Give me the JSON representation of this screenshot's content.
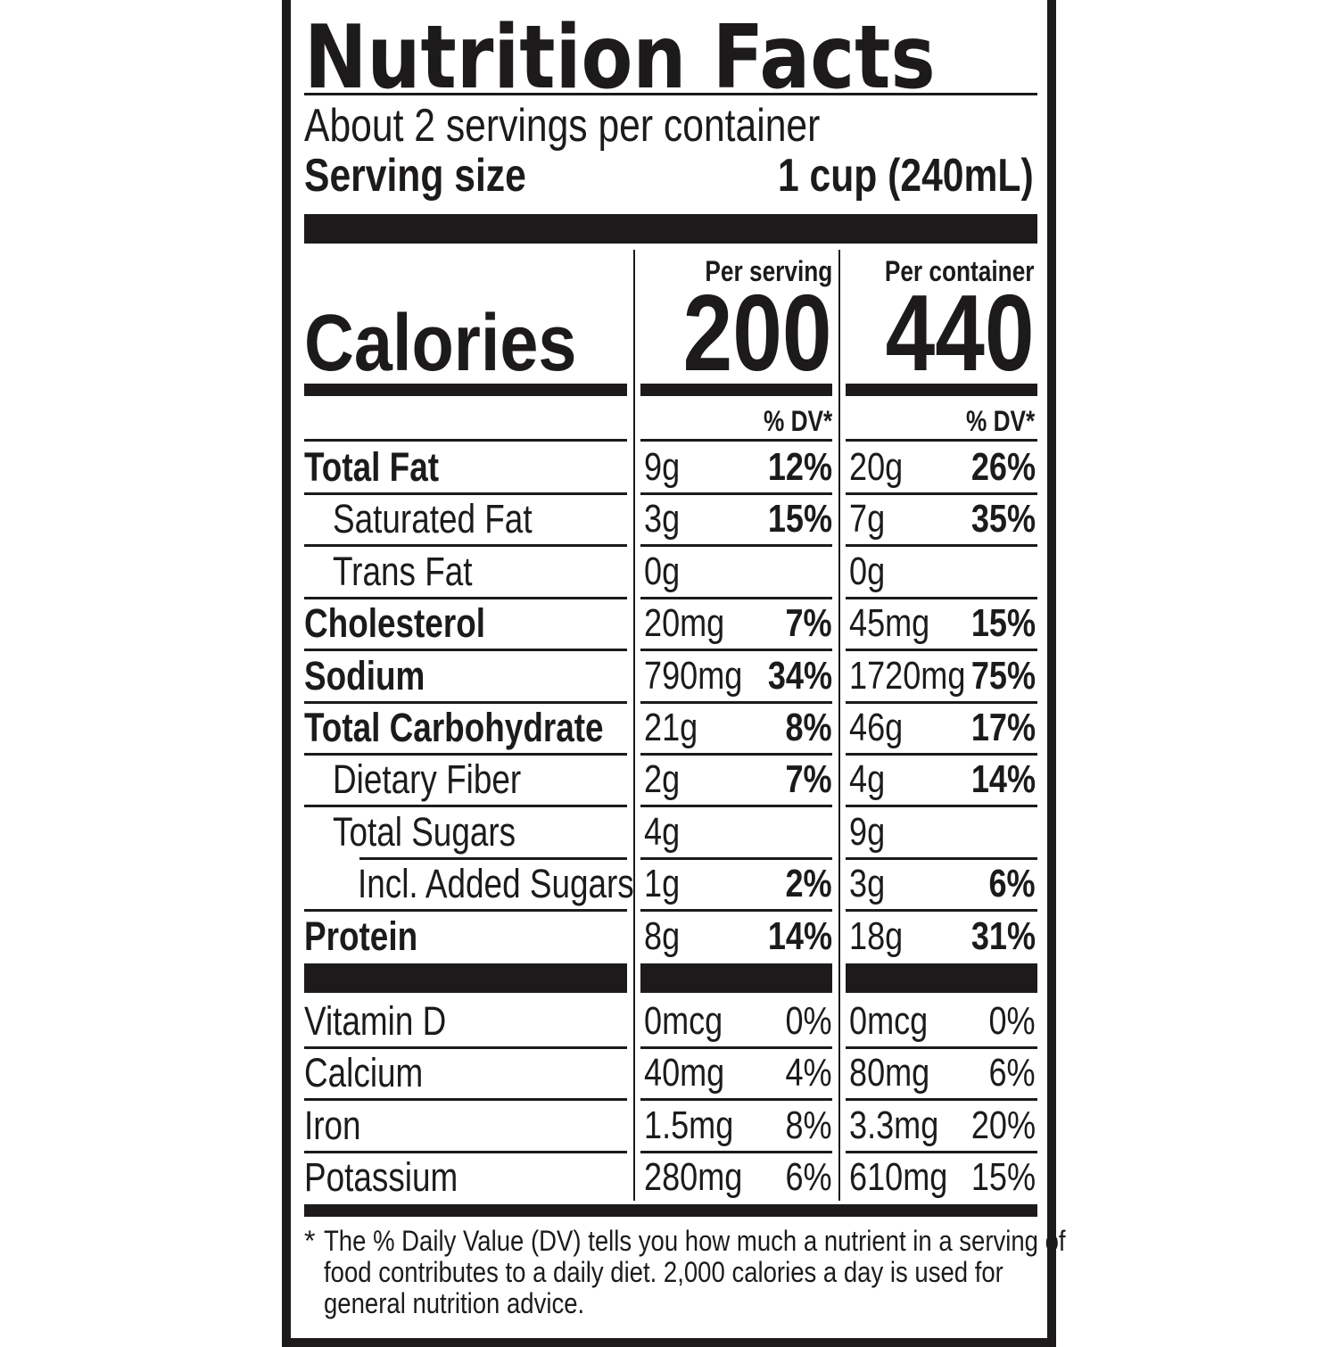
{
  "title": "Nutrition Facts",
  "servings_per_container": "About 2 servings per container",
  "serving_size_label": "Serving size",
  "serving_size_value": "1 cup (240mL)",
  "calories_label": "Calories",
  "columns": [
    {
      "header": "Per serving",
      "calories": "200",
      "dv_header": "% DV*"
    },
    {
      "header": "Per container",
      "calories": "440",
      "dv_header": "% DV*"
    }
  ],
  "nutrients": [
    {
      "label": "Total Fat",
      "bold": true,
      "indent": 0,
      "values": [
        {
          "amount": "9g",
          "dv": "12%"
        },
        {
          "amount": "20g",
          "dv": "26%"
        }
      ]
    },
    {
      "label": "Saturated Fat",
      "bold": false,
      "indent": 1,
      "values": [
        {
          "amount": "3g",
          "dv": "15%"
        },
        {
          "amount": "7g",
          "dv": "35%"
        }
      ]
    },
    {
      "label": "Trans Fat",
      "bold": false,
      "indent": 1,
      "values": [
        {
          "amount": "0g",
          "dv": ""
        },
        {
          "amount": "0g",
          "dv": ""
        }
      ]
    },
    {
      "label": "Cholesterol",
      "bold": true,
      "indent": 0,
      "values": [
        {
          "amount": "20mg",
          "dv": "7%"
        },
        {
          "amount": "45mg",
          "dv": "15%"
        }
      ]
    },
    {
      "label": "Sodium",
      "bold": true,
      "indent": 0,
      "values": [
        {
          "amount": "790mg",
          "dv": "34%"
        },
        {
          "amount": "1720mg",
          "dv": "75%"
        }
      ]
    },
    {
      "label": "Total Carbohydrate",
      "bold": true,
      "indent": 0,
      "values": [
        {
          "amount": "21g",
          "dv": "8%"
        },
        {
          "amount": "46g",
          "dv": "17%"
        }
      ]
    },
    {
      "label": "Dietary Fiber",
      "bold": false,
      "indent": 1,
      "values": [
        {
          "amount": "2g",
          "dv": "7%"
        },
        {
          "amount": "4g",
          "dv": "14%"
        }
      ]
    },
    {
      "label": "Total Sugars",
      "bold": false,
      "indent": 1,
      "values": [
        {
          "amount": "4g",
          "dv": ""
        },
        {
          "amount": "9g",
          "dv": ""
        }
      ]
    },
    {
      "label": "Incl. Added Sugars",
      "bold": false,
      "indent": 2,
      "values": [
        {
          "amount": "1g",
          "dv": "2%"
        },
        {
          "amount": "3g",
          "dv": "6%"
        }
      ]
    },
    {
      "label": "Protein",
      "bold": true,
      "indent": 0,
      "values": [
        {
          "amount": "8g",
          "dv": "14%"
        },
        {
          "amount": "18g",
          "dv": "31%"
        }
      ]
    }
  ],
  "vitamins": [
    {
      "label": "Vitamin D",
      "values": [
        {
          "amount": "0mcg",
          "dv": "0%"
        },
        {
          "amount": "0mcg",
          "dv": "0%"
        }
      ]
    },
    {
      "label": "Calcium",
      "values": [
        {
          "amount": "40mg",
          "dv": "4%"
        },
        {
          "amount": "80mg",
          "dv": "6%"
        }
      ]
    },
    {
      "label": "Iron",
      "values": [
        {
          "amount": "1.5mg",
          "dv": "8%"
        },
        {
          "amount": "3.3mg",
          "dv": "20%"
        }
      ]
    },
    {
      "label": "Potassium",
      "values": [
        {
          "amount": "280mg",
          "dv": "6%"
        },
        {
          "amount": "610mg",
          "dv": "15%"
        }
      ]
    }
  ],
  "footnote_marker": "*",
  "footnote_lines": [
    "The % Daily Value (DV) tells you how much a nutrient in a serving of",
    "food contributes to a daily diet. 2,000 calories a day is used for",
    "general nutrition advice."
  ]
}
